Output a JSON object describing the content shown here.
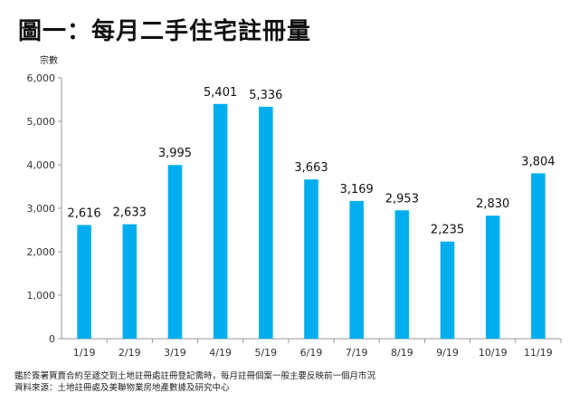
{
  "title": "圖一：每月二手住宅註冊量",
  "notes": [
    "鑑於簽署買賣合約至遞交到土地註冊處註冊登記需時，每月註冊個案一般主要反映前一個月市況",
    "資料來源：土地註冊處及美聯物業房地產數據及研究中心"
  ],
  "chart_data": {
    "type": "bar",
    "title": "圖一：每月二手住宅註冊量",
    "ylabel": "宗數",
    "xlabel": "",
    "categories": [
      "1/19",
      "2/19",
      "3/19",
      "4/19",
      "5/19",
      "6/19",
      "7/19",
      "8/19",
      "9/19",
      "10/19",
      "11/19"
    ],
    "values": [
      2616,
      2633,
      3995,
      5401,
      5336,
      3663,
      3169,
      2953,
      2235,
      2830,
      3804
    ],
    "value_labels": [
      "2,616",
      "2,633",
      "3,995",
      "5,401",
      "5,336",
      "3,663",
      "3,169",
      "2,953",
      "2,235",
      "2,830",
      "3,804"
    ],
    "ylim": [
      0,
      6000
    ],
    "yticks": [
      0,
      1000,
      2000,
      3000,
      4000,
      5000,
      6000
    ],
    "ytick_labels": [
      "0",
      "1,000",
      "2,000",
      "3,000",
      "4,000",
      "5,000",
      "6,000"
    ],
    "grid": false,
    "legend": "none",
    "bar_color": "#00AEEF"
  }
}
